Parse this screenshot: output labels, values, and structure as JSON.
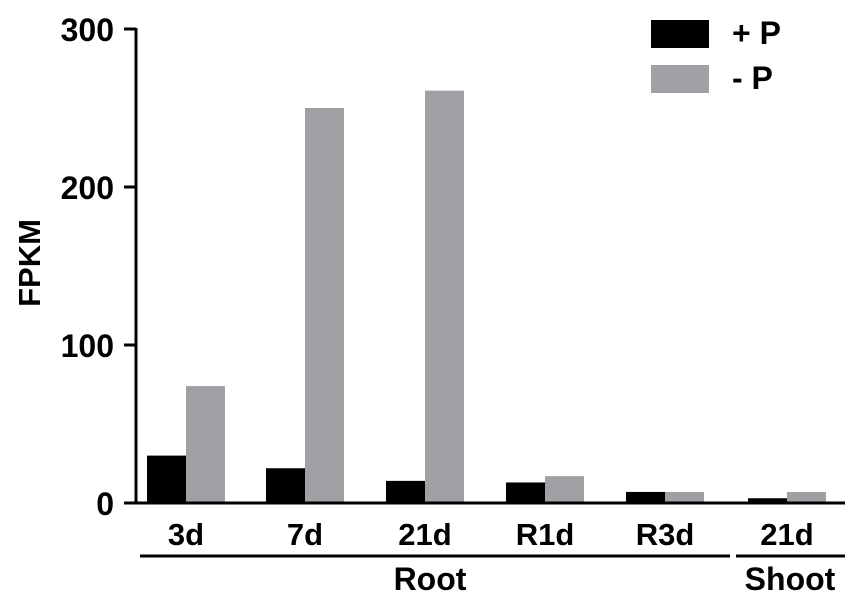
{
  "chart_data": {
    "type": "bar",
    "ylabel": "FPKM",
    "ylim": [
      0,
      300
    ],
    "yticks": [
      "0",
      "100",
      "200",
      "300"
    ],
    "categories": [
      "3d",
      "7d",
      "21d",
      "R1d",
      "R3d",
      "21d"
    ],
    "groups": [
      {
        "label": "Root",
        "categories": [
          "3d",
          "7d",
          "21d",
          "R1d",
          "R3d"
        ]
      },
      {
        "label": "Shoot",
        "categories": [
          "21d"
        ]
      }
    ],
    "series": [
      {
        "name": "+ P",
        "color": "#000000",
        "values": [
          30,
          22,
          14,
          13,
          7,
          3
        ]
      },
      {
        "name": "- P",
        "color": "#a0a0a4",
        "values": [
          74,
          250,
          261,
          17,
          7,
          7
        ]
      }
    ],
    "legend_position": "top-right",
    "grid": false
  }
}
